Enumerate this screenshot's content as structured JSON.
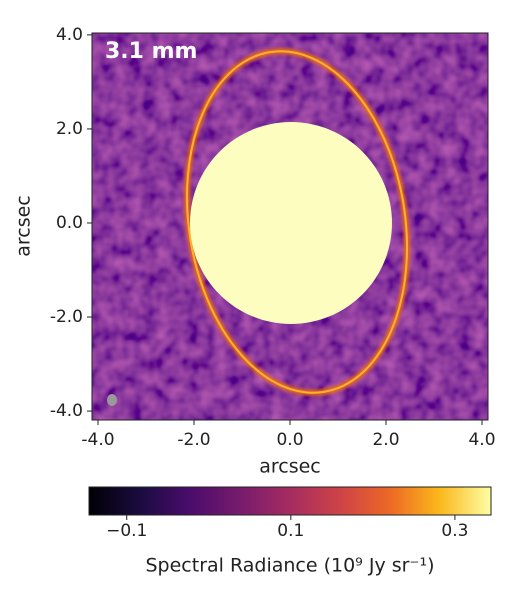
{
  "chart_data": {
    "type": "image",
    "annotation": "3.1 mm",
    "xlabel": "arcsec",
    "ylabel": "arcsec",
    "xlim": [
      -4.125,
      4.125
    ],
    "ylim": [
      -4.19,
      4.04
    ],
    "xticks": [
      {
        "value": -4,
        "label": "-4.0"
      },
      {
        "value": -2,
        "label": "-2.0"
      },
      {
        "value": 0,
        "label": "0.0"
      },
      {
        "value": 2,
        "label": "2.0"
      },
      {
        "value": 4,
        "label": "4.0"
      }
    ],
    "yticks": [
      {
        "value": -4,
        "label": "-4.0"
      },
      {
        "value": -2,
        "label": "-2.0"
      },
      {
        "value": 0,
        "label": "0.0"
      },
      {
        "value": 2,
        "label": "2.0"
      },
      {
        "value": 4,
        "label": "4.0"
      }
    ],
    "colorbar": {
      "label": "Spectral Radiance (10⁹ Jy sr⁻¹)",
      "clim": [
        -0.146,
        0.344
      ],
      "ticks": [
        {
          "value": -0.1,
          "label": "−0.1"
        },
        0.1,
        0.3
      ]
    }
  }
}
